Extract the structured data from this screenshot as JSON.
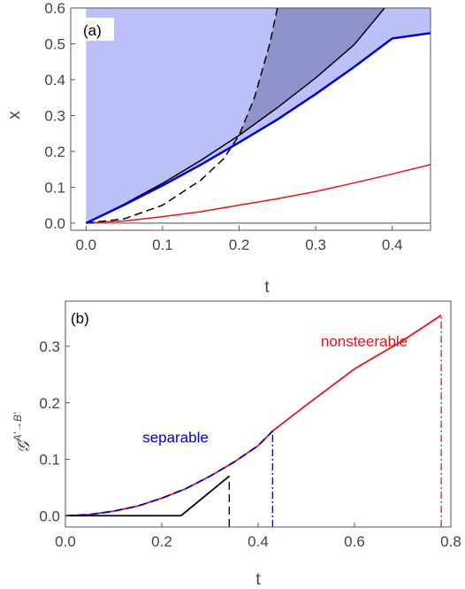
{
  "chart_data": [
    {
      "type": "line",
      "panel_label": "(a)",
      "xlabel": "t",
      "ylabel": "x",
      "xlim": [
        -0.02,
        0.45
      ],
      "ylim": [
        -0.02,
        0.6
      ],
      "xticks": [
        "0.0",
        "0.1",
        "0.2",
        "0.3",
        "0.4"
      ],
      "yticks": [
        "0.0",
        "0.1",
        "0.2",
        "0.3",
        "0.4",
        "0.5",
        "0.6"
      ],
      "grid": false,
      "legend": "none",
      "regions": [
        {
          "id": "light-region",
          "color": "#bcc0f8",
          "description_bounds": "above blue curve",
          "x_range": [
            0,
            0.45
          ]
        },
        {
          "id": "dark-region",
          "color": "#8f93cc",
          "description_bounds": "between black solid and dashed curves",
          "x_range": [
            0.2,
            0.39
          ]
        }
      ],
      "series": [
        {
          "id": "black-solid",
          "color": "#000000",
          "style": "solid",
          "x": [
            0,
            0.05,
            0.1,
            0.15,
            0.2,
            0.25,
            0.3,
            0.35,
            0.39
          ],
          "y": [
            0,
            0.053,
            0.111,
            0.175,
            0.245,
            0.322,
            0.405,
            0.497,
            0.6
          ]
        },
        {
          "id": "black-dashed",
          "color": "#000000",
          "style": "dashed",
          "x": [
            0,
            0.05,
            0.1,
            0.15,
            0.18,
            0.2,
            0.22,
            0.24,
            0.25
          ],
          "y": [
            0,
            0.012,
            0.05,
            0.12,
            0.18,
            0.245,
            0.35,
            0.5,
            0.6
          ]
        },
        {
          "id": "blue-solid",
          "color": "#0000d8",
          "style": "solid",
          "x": [
            0,
            0.05,
            0.1,
            0.15,
            0.2,
            0.25,
            0.3,
            0.35,
            0.4,
            0.45
          ],
          "y": [
            0,
            0.051,
            0.105,
            0.163,
            0.225,
            0.289,
            0.36,
            0.435,
            0.515,
            0.53
          ]
        },
        {
          "id": "red-solid",
          "color": "#e8141e",
          "style": "solid",
          "x": [
            0,
            0.05,
            0.1,
            0.15,
            0.2,
            0.25,
            0.3,
            0.35,
            0.4,
            0.45
          ],
          "y": [
            0,
            0.006,
            0.018,
            0.032,
            0.05,
            0.068,
            0.088,
            0.112,
            0.137,
            0.163
          ]
        },
        {
          "id": "gray-zero",
          "color": "#888888",
          "style": "solid",
          "x": [
            0,
            0.45
          ],
          "y": [
            0,
            0
          ]
        }
      ]
    },
    {
      "type": "line",
      "panel_label": "(b)",
      "xlabel": "t",
      "ylabel": "𝒢",
      "ylabel_sup": "A'→B'",
      "xlim": [
        0,
        0.8
      ],
      "ylim": [
        -0.02,
        0.38
      ],
      "xticks": [
        "0.0",
        "0.2",
        "0.4",
        "0.6",
        "0.8"
      ],
      "yticks": [
        "0.0",
        "0.1",
        "0.2",
        "0.3"
      ],
      "grid": false,
      "legend": "none",
      "annotations": [
        {
          "text": "separable",
          "color": "#0000d8",
          "x": 0.16,
          "y": 0.13
        },
        {
          "text": "nonsteerable",
          "color": "#e8141e",
          "x": 0.53,
          "y": 0.3
        }
      ],
      "series": [
        {
          "id": "red-curve",
          "color": "#e8141e",
          "style": "solid",
          "x": [
            0,
            0.05,
            0.1,
            0.15,
            0.2,
            0.25,
            0.3,
            0.35,
            0.4,
            0.43,
            0.5,
            0.6,
            0.7,
            0.78
          ],
          "y": [
            0,
            0.002,
            0.008,
            0.017,
            0.031,
            0.048,
            0.07,
            0.095,
            0.124,
            0.15,
            0.196,
            0.26,
            0.31,
            0.355
          ]
        },
        {
          "id": "blue-dashed",
          "color": "#0000d8",
          "style": "dashed",
          "x": [
            0,
            0.05,
            0.1,
            0.15,
            0.2,
            0.25,
            0.3,
            0.35,
            0.4,
            0.43
          ],
          "y": [
            0,
            0.002,
            0.008,
            0.017,
            0.031,
            0.048,
            0.07,
            0.095,
            0.124,
            0.15
          ]
        },
        {
          "id": "black-curve",
          "color": "#000000",
          "style": "solid",
          "x": [
            0,
            0.24,
            0.34
          ],
          "y": [
            0,
            0,
            0.07
          ]
        }
      ],
      "vlines": [
        {
          "id": "vline-black",
          "color": "#000000",
          "style": "dashed",
          "x": 0.34,
          "y": 0.07
        },
        {
          "id": "vline-blue",
          "color": "#0000d8",
          "style": "dashdot",
          "x": 0.43,
          "y": 0.15
        },
        {
          "id": "vline-red",
          "color": "#e8141e",
          "style": "dashdot",
          "x": 0.78,
          "y": 0.355
        }
      ]
    }
  ]
}
